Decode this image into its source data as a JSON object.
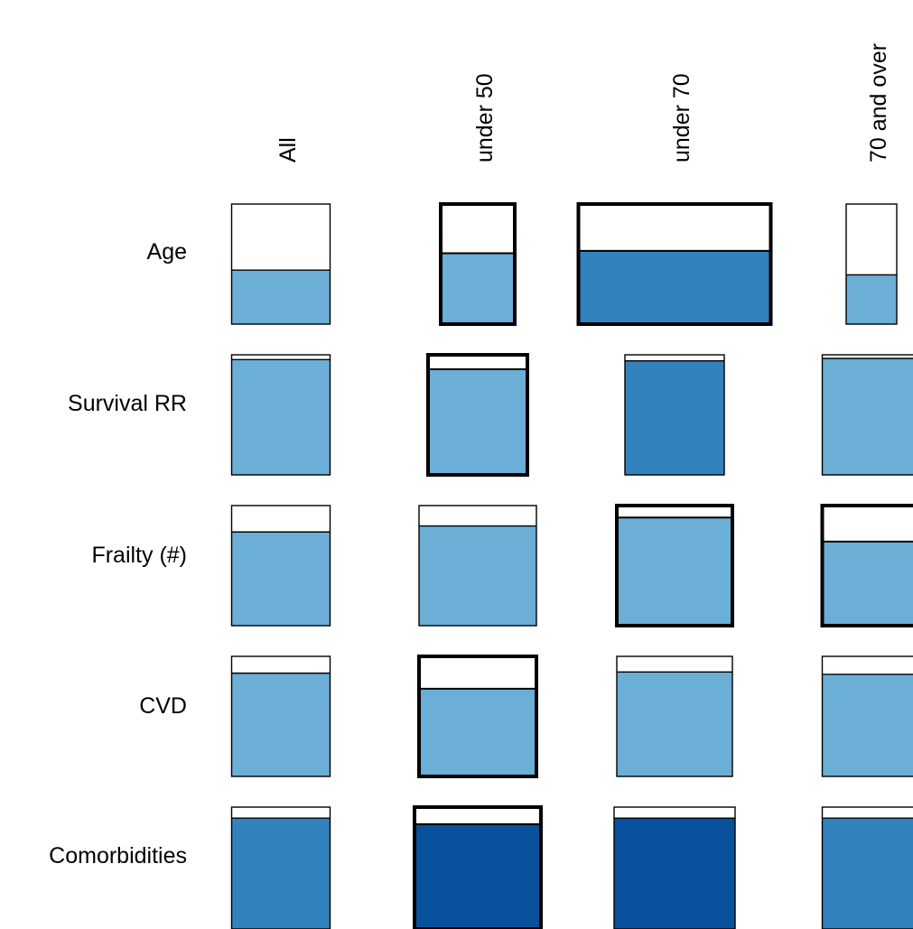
{
  "chart_data": {
    "type": "heatmap",
    "columns": [
      "All",
      "under 50",
      "under 70",
      "70 and over"
    ],
    "rows": [
      "Age",
      "Survival RR",
      "Frailty (#)",
      "CVD",
      "Comorbidities"
    ],
    "colors": {
      "light": "#6baed6",
      "medium": "#3182bd",
      "dark": "#08519c",
      "border": "#000000",
      "background": "#ffffff"
    },
    "cells": [
      [
        {
          "fill_fraction": 0.45,
          "shade": "light",
          "emphasized": false
        },
        {
          "fill_fraction": 0.59,
          "shade": "light",
          "emphasized": true
        },
        {
          "fill_fraction": 0.61,
          "shade": "medium",
          "emphasized": true
        },
        {
          "fill_fraction": 0.41,
          "shade": "light",
          "emphasized": false
        }
      ],
      [
        {
          "fill_fraction": 0.96,
          "shade": "light",
          "emphasized": false
        },
        {
          "fill_fraction": 0.88,
          "shade": "light",
          "emphasized": true
        },
        {
          "fill_fraction": 0.95,
          "shade": "medium",
          "emphasized": false
        },
        {
          "fill_fraction": 0.97,
          "shade": "light",
          "emphasized": false
        }
      ],
      [
        {
          "fill_fraction": 0.78,
          "shade": "light",
          "emphasized": false
        },
        {
          "fill_fraction": 0.83,
          "shade": "light",
          "emphasized": false
        },
        {
          "fill_fraction": 0.9,
          "shade": "light",
          "emphasized": true
        },
        {
          "fill_fraction": 0.7,
          "shade": "light",
          "emphasized": true
        }
      ],
      [
        {
          "fill_fraction": 0.86,
          "shade": "light",
          "emphasized": false
        },
        {
          "fill_fraction": 0.73,
          "shade": "light",
          "emphasized": true
        },
        {
          "fill_fraction": 0.87,
          "shade": "light",
          "emphasized": false
        },
        {
          "fill_fraction": 0.85,
          "shade": "light",
          "emphasized": false
        }
      ],
      [
        {
          "fill_fraction": 0.91,
          "shade": "medium",
          "emphasized": false
        },
        {
          "fill_fraction": 0.86,
          "shade": "dark",
          "emphasized": true
        },
        {
          "fill_fraction": 0.91,
          "shade": "dark",
          "emphasized": false
        },
        {
          "fill_fraction": 0.91,
          "shade": "medium",
          "emphasized": false
        }
      ]
    ]
  }
}
